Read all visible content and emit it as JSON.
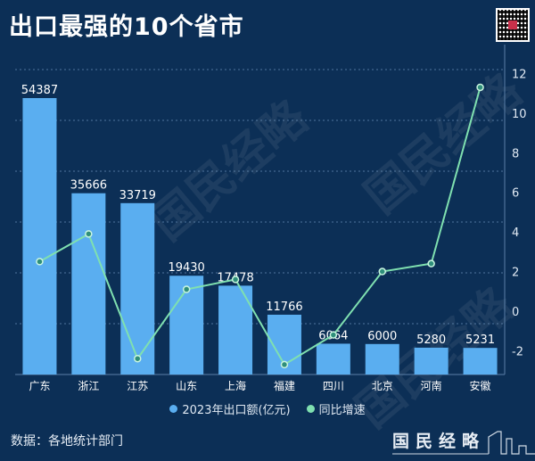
{
  "header": {
    "title": "出口最强的10个省市"
  },
  "watermark": "国民经略",
  "footer": {
    "source": "数据：各地统计部门",
    "logo": "国民经略"
  },
  "colors": {
    "bar": "#5aaef0",
    "line": "#7fe0b0",
    "background": "#0c2f56"
  },
  "chart_data": {
    "type": "bar+line",
    "title": "出口最强的10个省市",
    "categories": [
      "广东",
      "浙江",
      "江苏",
      "山东",
      "上海",
      "福建",
      "四川",
      "北京",
      "河南",
      "安徽"
    ],
    "series": [
      {
        "name": "2023年出口额(亿元)",
        "type": "bar",
        "axis": "left",
        "values": [
          54387,
          35666,
          33719,
          19430,
          17478,
          11766,
          6064,
          6000,
          5280,
          5231
        ]
      },
      {
        "name": "同比增速",
        "type": "line",
        "axis": "right",
        "values": [
          2.5,
          3.9,
          -2.4,
          1.1,
          1.6,
          -2.7,
          -1.2,
          2.0,
          2.4,
          11.3
        ]
      }
    ],
    "left_axis": {
      "range": [
        0,
        60000
      ],
      "gridlines": [
        10000,
        20000,
        30000,
        40000,
        50000,
        60000
      ],
      "visible": false
    },
    "right_axis": {
      "range": [
        -3.2,
        12.2
      ],
      "ticks": [
        "12",
        "10",
        "8",
        "6",
        "4",
        "2",
        "0",
        "-2"
      ],
      "tick_values": [
        12,
        10,
        8,
        6,
        4,
        2,
        0,
        -2
      ]
    },
    "legend": {
      "position": "bottom",
      "entries": [
        "2023年出口额(亿元)",
        "同比增速"
      ]
    },
    "grid": true
  }
}
